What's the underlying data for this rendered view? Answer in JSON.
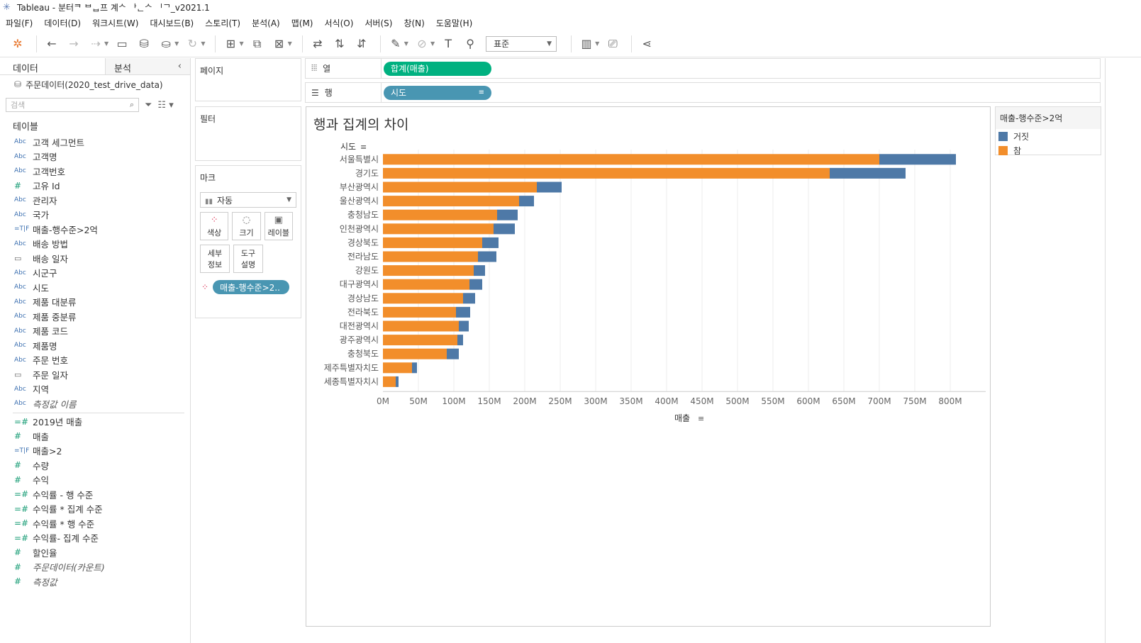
{
  "window": {
    "title": "Tableau - 분터ᄏ ᄇᆸ프 계ᄉ ᅡᆫᄉ ᅵᄀ_v2021.1"
  },
  "menu": [
    "파일(F)",
    "데이터(D)",
    "워크시트(W)",
    "대시보드(B)",
    "스토리(T)",
    "분석(A)",
    "맵(M)",
    "서식(O)",
    "서버(S)",
    "창(N)",
    "도움말(H)"
  ],
  "toolbar": {
    "fit_value": "표준"
  },
  "datapane": {
    "tab_data": "데이터",
    "tab_analysis": "분석",
    "datasource": "주문데이터(2020_test_drive_data)",
    "search_placeholder": "검색",
    "tables_label": "테이블",
    "dimensions": [
      {
        "type": "Abc",
        "label": "고객 세그먼트"
      },
      {
        "type": "Abc",
        "label": "고객명"
      },
      {
        "type": "Abc",
        "label": "고객번호"
      },
      {
        "type": "#",
        "label": "고유 Id"
      },
      {
        "type": "Abc",
        "label": "관리자"
      },
      {
        "type": "Abc",
        "label": "국가"
      },
      {
        "type": "=T|F",
        "label": "매출-행수준>2억"
      },
      {
        "type": "Abc",
        "label": "배송 방법"
      },
      {
        "type": "date",
        "label": "배송 일자"
      },
      {
        "type": "Abc",
        "label": "시군구"
      },
      {
        "type": "Abc",
        "label": "시도"
      },
      {
        "type": "Abc",
        "label": "제품 대분류"
      },
      {
        "type": "Abc",
        "label": "제품 중분류"
      },
      {
        "type": "Abc",
        "label": "제품 코드"
      },
      {
        "type": "Abc",
        "label": "제품명"
      },
      {
        "type": "Abc",
        "label": "주문 번호"
      },
      {
        "type": "date",
        "label": "주문 일자"
      },
      {
        "type": "Abc",
        "label": "지역"
      },
      {
        "type": "Abc",
        "label": "측정값 이름",
        "italic": true
      }
    ],
    "measures": [
      {
        "type": "=#",
        "label": "2019년 매출"
      },
      {
        "type": "#",
        "label": "매출"
      },
      {
        "type": "=T|F",
        "label": "매출>2"
      },
      {
        "type": "#",
        "label": "수량"
      },
      {
        "type": "#",
        "label": "수익"
      },
      {
        "type": "=#",
        "label": "수익률 - 행 수준"
      },
      {
        "type": "=#",
        "label": "수익률 * 집계 수준"
      },
      {
        "type": "=#",
        "label": "수익률 * 행 수준"
      },
      {
        "type": "=#",
        "label": "수익률- 집계 수준"
      },
      {
        "type": "#",
        "label": "할인율"
      },
      {
        "type": "#",
        "label": "주문데이터(카운트)",
        "italic": true
      },
      {
        "type": "#",
        "label": "측정값",
        "italic": true
      }
    ]
  },
  "shelves": {
    "pages_label": "페이지",
    "filters_label": "필터",
    "marks_label": "마크",
    "marktype": "자동",
    "mark_buttons": [
      "색상",
      "크기",
      "레이블"
    ],
    "mark_buttons2": [
      "세부\n정보",
      "도구\n설명"
    ],
    "color_pill": "매출-행수준>2..",
    "columns_label": "열",
    "rows_label": "행",
    "columns_pill": "합계(매출)",
    "rows_pill": "시도"
  },
  "colors": {
    "true": "#f28e2b",
    "false": "#4e79a7",
    "green_pill": "#00b180",
    "blue_pill": "#4996b2"
  },
  "view": {
    "title": "행과 집계의 차이",
    "row_header": "시도",
    "x_axis_label": "매출"
  },
  "legend": {
    "title": "매출-행수준>2억",
    "items": [
      {
        "label": "거짓",
        "color": "#4e79a7"
      },
      {
        "label": "참",
        "color": "#f28e2b"
      }
    ]
  },
  "chart_data": {
    "type": "bar",
    "orientation": "horizontal",
    "stacked": true,
    "categories": [
      "서울특별시",
      "경기도",
      "부산광역시",
      "울산광역시",
      "충청남도",
      "인천광역시",
      "경상북도",
      "전라남도",
      "강원도",
      "대구광역시",
      "경상남도",
      "전라북도",
      "대전광역시",
      "광주광역시",
      "충청북도",
      "제주특별자치도",
      "세종특별자치시"
    ],
    "series": [
      {
        "name": "참",
        "values": [
          700,
          630,
          217,
          192,
          161,
          156,
          140,
          134,
          128,
          122,
          113,
          103,
          107,
          105,
          90,
          41,
          18
        ]
      },
      {
        "name": "거짓",
        "values": [
          108,
          107,
          35,
          21,
          29,
          30,
          23,
          26,
          16,
          18,
          17,
          20,
          14,
          8,
          17,
          7,
          4
        ]
      }
    ],
    "x_ticks": [
      "0M",
      "50M",
      "100M",
      "150M",
      "200M",
      "250M",
      "300M",
      "350M",
      "400M",
      "450M",
      "500M",
      "550M",
      "600M",
      "650M",
      "700M",
      "750M",
      "800M"
    ],
    "xlim": [
      0,
      850
    ],
    "unit": "M",
    "xlabel": "매출",
    "ylabel": "시도",
    "grid": true
  }
}
